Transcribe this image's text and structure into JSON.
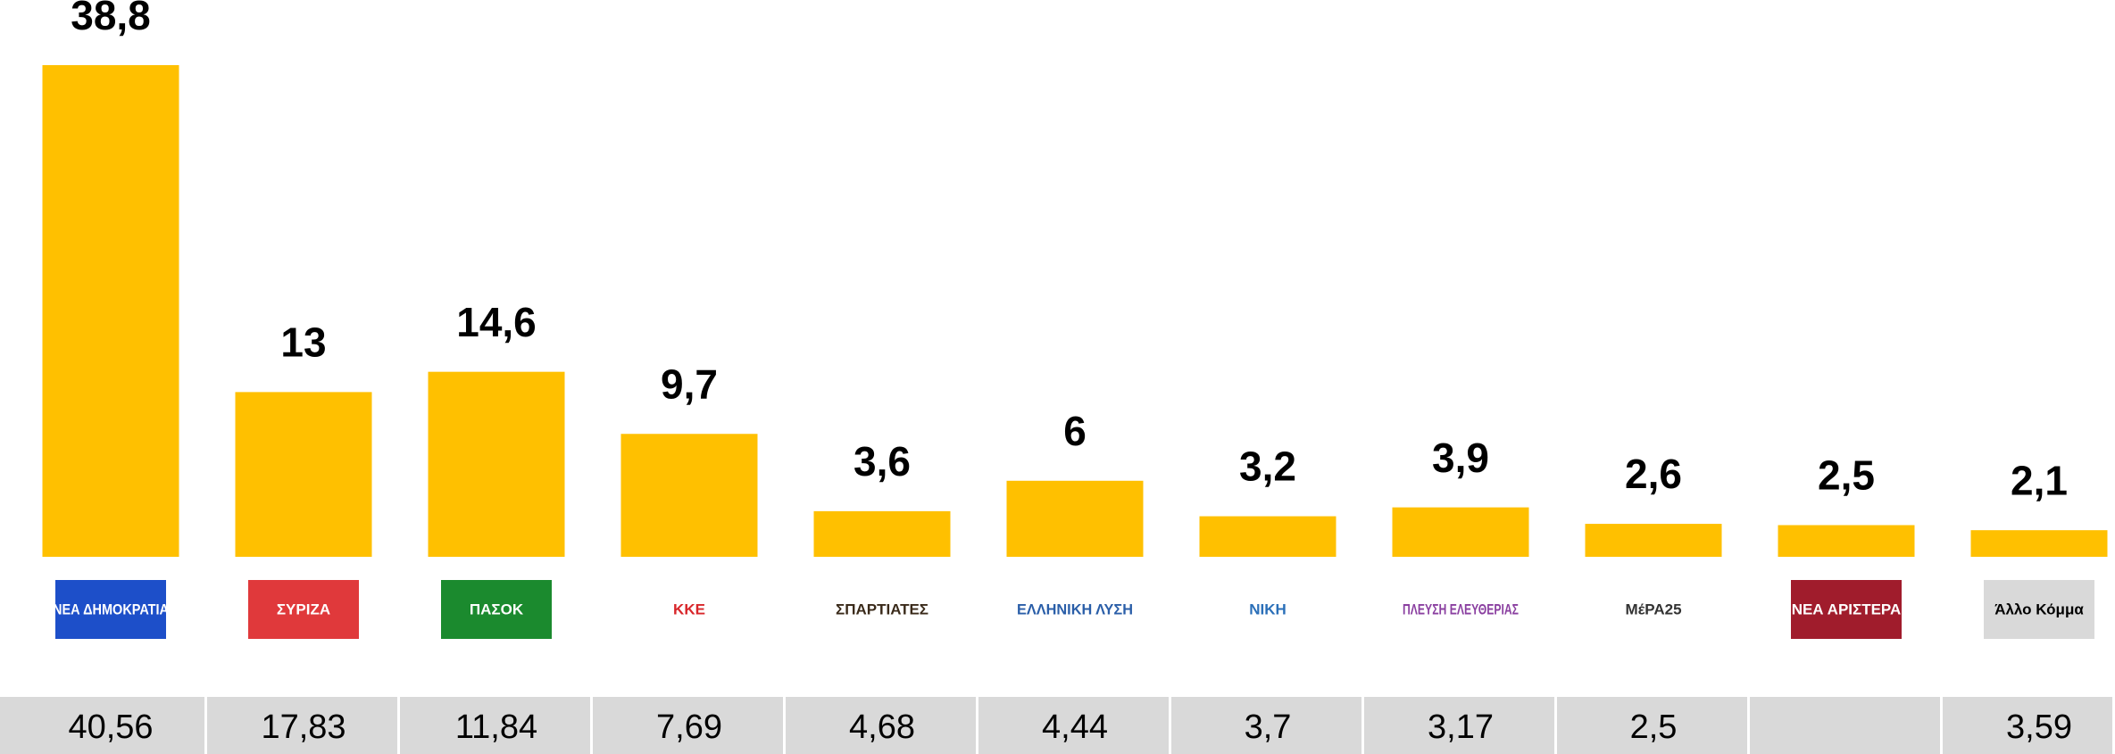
{
  "chart_data": {
    "type": "bar",
    "categories": [
      "ΝΕΑ ΔΗΜΟΚΡΑΤΙΑ",
      "ΣΥΡΙΖΑ",
      "ΠΑΣΟΚ",
      "ΚΚΕ",
      "ΣΠΑΡΤΙΑΤΕΣ",
      "ΕΛΛΗΝΙΚΗ ΛΥΣΗ",
      "ΝΙΚΗ",
      "ΠΛΕΥΣΗ ΕΛΕΥΘΕΡΙΑΣ",
      "ΜέΡΑ25",
      "ΝΕΑ ΑΡΙΣΤΕΡΑ",
      "Άλλο Κόμμα"
    ],
    "values": [
      38.8,
      13,
      14.6,
      9.7,
      3.6,
      6,
      3.2,
      3.9,
      2.6,
      2.5,
      2.1
    ],
    "value_labels": [
      "38,8",
      "13",
      "14,6",
      "9,7",
      "3,6",
      "6",
      "3,2",
      "3,9",
      "2,6",
      "2,5",
      "2,1"
    ],
    "color": "#ffc000",
    "logo_colors": [
      "#1d4fc9",
      "#e0393b",
      "#1b8a2e",
      "#d8262a",
      "#3a2a1a",
      "#2a5ea8",
      "#2a6fb8",
      "#8a3fa0",
      "#333333",
      "#a01c2c",
      "#d9d9d9"
    ],
    "table_values": [
      40.56,
      17.83,
      11.84,
      7.69,
      4.68,
      4.44,
      3.7,
      3.17,
      2.5,
      null,
      3.59
    ],
    "table_labels": [
      "40,56",
      "17,83",
      "11,84",
      "7,69",
      "4,68",
      "4,44",
      "3,7",
      "3,17",
      "2,5",
      null,
      "3,59"
    ],
    "table_color": "#d9d9d9"
  }
}
